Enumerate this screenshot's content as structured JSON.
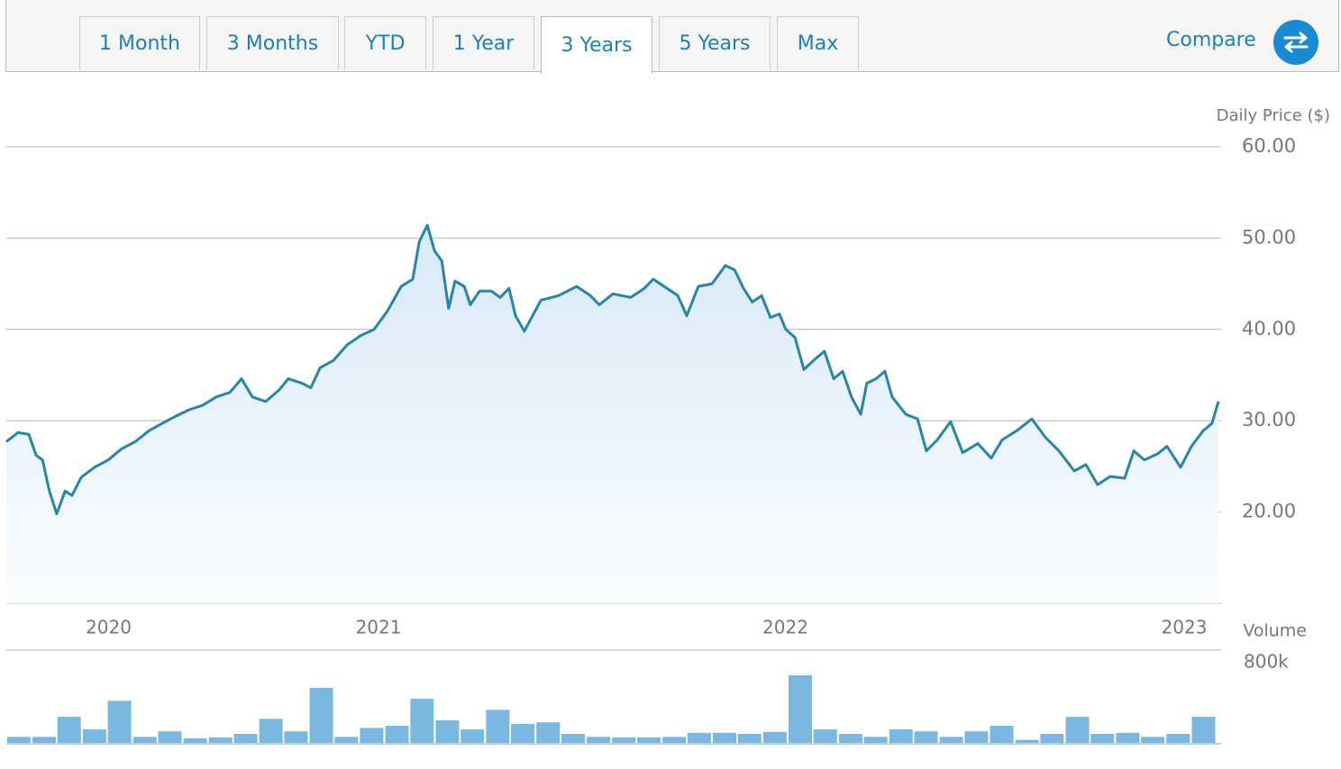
{
  "tabs": [
    "1 Month",
    "3 Months",
    "YTD",
    "1 Year",
    "3 Years",
    "5 Years",
    "Max"
  ],
  "active_tab": 4,
  "compare": "Compare",
  "chart_data": [
    {
      "type": "line",
      "y_label": "Daily Price ($)",
      "color": "#2585aa",
      "area": true,
      "grid": true,
      "xlim": [
        2020.076,
        2023.085
      ],
      "xticks": [
        {
          "value": 2020.33,
          "label": "2020"
        },
        2021,
        {
          "value": 2022.01,
          "label": "2022"
        },
        2023
      ],
      "ylim": [
        10,
        60
      ],
      "yticks": [
        {
          "value": 20,
          "label": "20.00"
        },
        {
          "value": 30,
          "label": "30.00"
        },
        {
          "value": 40,
          "label": "40.00"
        },
        {
          "value": 50,
          "label": "50.00"
        },
        {
          "value": 60,
          "label": "60.00"
        }
      ],
      "x": [
        2020.076,
        2020.105,
        2020.132,
        2020.15,
        2020.166,
        2020.183,
        2020.201,
        2020.222,
        2020.239,
        2020.262,
        2020.295,
        2020.329,
        2020.362,
        2020.396,
        2020.43,
        2020.463,
        2020.497,
        2020.53,
        2020.564,
        2020.597,
        2020.631,
        2020.66,
        2020.687,
        2020.72,
        2020.754,
        2020.776,
        2020.81,
        2020.832,
        2020.855,
        2020.888,
        2020.922,
        2020.955,
        2020.989,
        2021.022,
        2021.056,
        2021.085,
        2021.101,
        2021.121,
        2021.139,
        2021.157,
        2021.174,
        2021.19,
        2021.213,
        2021.228,
        2021.251,
        2021.28,
        2021.302,
        2021.324,
        2021.34,
        2021.362,
        2021.38,
        2021.403,
        2021.447,
        2021.492,
        2021.526,
        2021.548,
        2021.582,
        2021.626,
        2021.66,
        2021.682,
        2021.716,
        2021.743,
        2021.765,
        2021.794,
        2021.828,
        2021.861,
        2021.884,
        2021.906,
        2021.928,
        2021.951,
        2021.973,
        2021.995,
        2022.011,
        2022.034,
        2022.056,
        2022.085,
        2022.107,
        2022.13,
        2022.152,
        2022.174,
        2022.197,
        2022.212,
        2022.235,
        2022.257,
        2022.275,
        2022.309,
        2022.338,
        2022.36,
        2022.387,
        2022.42,
        2022.45,
        2022.488,
        2022.521,
        2022.548,
        2022.584,
        2022.622,
        2022.655,
        2022.689,
        2022.727,
        2022.756,
        2022.785,
        2022.816,
        2022.852,
        2022.875,
        2022.901,
        2022.935,
        2022.957,
        2022.991,
        2023.018,
        2023.047,
        2023.069,
        2023.085
      ],
      "series": [
        {
          "name": "Daily Price",
          "values": [
            27.7,
            28.7,
            28.5,
            26.2,
            25.7,
            22.3,
            19.8,
            22.3,
            21.8,
            23.8,
            24.9,
            25.7,
            26.9,
            27.7,
            28.9,
            29.7,
            30.5,
            31.2,
            31.7,
            32.6,
            33.1,
            34.6,
            32.6,
            32.1,
            33.4,
            34.6,
            34.1,
            33.6,
            35.8,
            36.6,
            38.3,
            39.3,
            40.0,
            42.0,
            44.7,
            45.5,
            49.6,
            51.4,
            48.6,
            47.5,
            42.3,
            45.3,
            44.7,
            42.7,
            44.2,
            44.2,
            43.5,
            44.5,
            41.5,
            39.8,
            41.3,
            43.2,
            43.7,
            44.7,
            43.7,
            42.7,
            43.9,
            43.5,
            44.5,
            45.5,
            44.5,
            43.7,
            41.5,
            44.7,
            45.0,
            47.0,
            46.5,
            44.5,
            43.0,
            43.7,
            41.3,
            41.7,
            40.0,
            39.1,
            35.6,
            36.8,
            37.6,
            34.6,
            35.4,
            32.6,
            30.7,
            34.1,
            34.6,
            35.4,
            32.6,
            30.7,
            30.2,
            26.7,
            27.9,
            29.9,
            26.5,
            27.5,
            25.9,
            27.9,
            28.9,
            30.2,
            28.2,
            26.7,
            24.5,
            25.2,
            23.0,
            23.9,
            23.7,
            26.7,
            25.7,
            26.4,
            27.2,
            24.9,
            27.2,
            28.9,
            29.7,
            32.1
          ]
        }
      ]
    },
    {
      "type": "bar",
      "y_label": "Volume",
      "color": "#7ab8df",
      "grid": false,
      "xlim": [
        2020.076,
        2023.085
      ],
      "ylim": [
        0,
        800000
      ],
      "yticks": [
        {
          "value": 800000,
          "label": "800k"
        }
      ],
      "x": [
        2020.107,
        2020.17,
        2020.232,
        2020.295,
        2020.357,
        2020.42,
        2020.482,
        2020.545,
        2020.608,
        2020.67,
        2020.733,
        2020.795,
        2020.858,
        2020.92,
        2020.983,
        2021.046,
        2021.108,
        2021.171,
        2021.233,
        2021.296,
        2021.358,
        2021.421,
        2021.483,
        2021.546,
        2021.609,
        2021.671,
        2021.734,
        2021.796,
        2021.859,
        2021.921,
        2021.984,
        2022.047,
        2022.109,
        2022.172,
        2022.234,
        2022.297,
        2022.359,
        2022.422,
        2022.484,
        2022.547,
        2022.61,
        2022.672,
        2022.735,
        2022.797,
        2022.86,
        2022.922,
        2022.985,
        2023.048
      ],
      "values": [
        60000,
        60000,
        260000,
        135000,
        420000,
        60000,
        115000,
        45000,
        55000,
        90000,
        240000,
        115000,
        550000,
        60000,
        150000,
        170000,
        440000,
        225000,
        135000,
        330000,
        190000,
        205000,
        90000,
        60000,
        55000,
        55000,
        60000,
        100000,
        100000,
        90000,
        110000,
        675000,
        135000,
        90000,
        60000,
        135000,
        115000,
        60000,
        115000,
        170000,
        30000,
        90000,
        260000,
        90000,
        100000,
        60000,
        90000,
        260000
      ]
    }
  ]
}
